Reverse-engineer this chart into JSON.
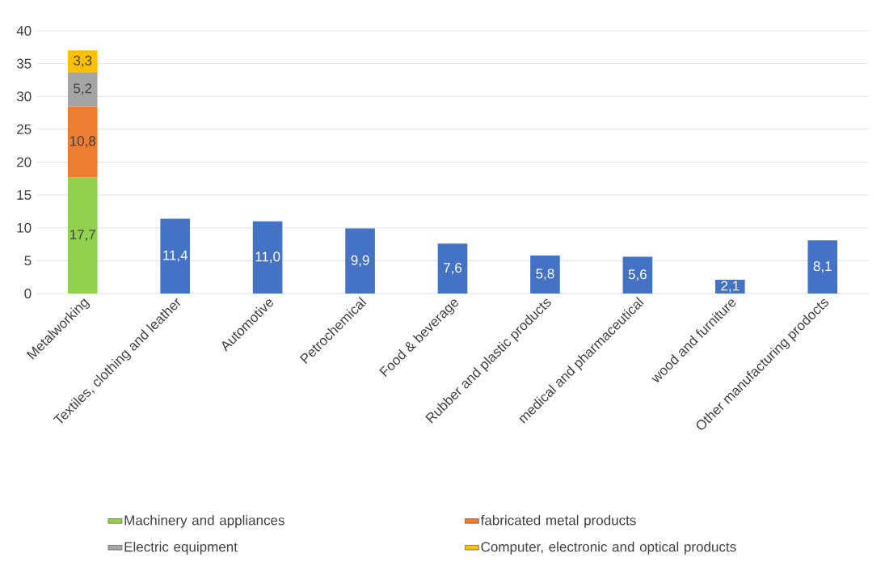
{
  "chart_data": {
    "type": "bar",
    "stacked": true,
    "categories": [
      "Metalworking",
      "Textiles, clothing and leather",
      "Automotive",
      "Petrochemical",
      "Food & beverage",
      "Rubber and plastic products",
      "medical and pharmaceutical",
      "wood and furniture",
      "Other manufacturing prodocts"
    ],
    "series": [
      {
        "name": "Machinery and appliances",
        "color": "#92d050",
        "values": [
          17.7,
          null,
          null,
          null,
          null,
          null,
          null,
          null,
          null
        ],
        "value_labels": [
          "17,7",
          null,
          null,
          null,
          null,
          null,
          null,
          null,
          null
        ]
      },
      {
        "name": "fabricated metal products",
        "color": "#ed7d31",
        "values": [
          10.8,
          null,
          null,
          null,
          null,
          null,
          null,
          null,
          null
        ],
        "value_labels": [
          "10,8",
          null,
          null,
          null,
          null,
          null,
          null,
          null,
          null
        ]
      },
      {
        "name": "Electric equipment",
        "color": "#a5a5a5",
        "values": [
          5.2,
          null,
          null,
          null,
          null,
          null,
          null,
          null,
          null
        ],
        "value_labels": [
          "5,2",
          null,
          null,
          null,
          null,
          null,
          null,
          null,
          null
        ]
      },
      {
        "name": "Computer, electronic and optical products",
        "color": "#ffc000",
        "values": [
          3.3,
          null,
          null,
          null,
          null,
          null,
          null,
          null,
          null
        ],
        "value_labels": [
          "3,3",
          null,
          null,
          null,
          null,
          null,
          null,
          null,
          null
        ]
      },
      {
        "color": "#4472c4",
        "values": [
          null,
          11.4,
          11.0,
          9.9,
          7.6,
          5.8,
          5.6,
          2.1,
          8.1
        ],
        "value_labels": [
          null,
          "11,4",
          "11,0",
          "9,9",
          "7,6",
          "5,8",
          "5,6",
          "2,1",
          "8,1"
        ]
      }
    ],
    "ylim": [
      0,
      40
    ],
    "yticks": [
      0,
      5,
      10,
      15,
      20,
      25,
      30,
      35,
      40
    ],
    "grid": "y",
    "legend": "bottom"
  }
}
